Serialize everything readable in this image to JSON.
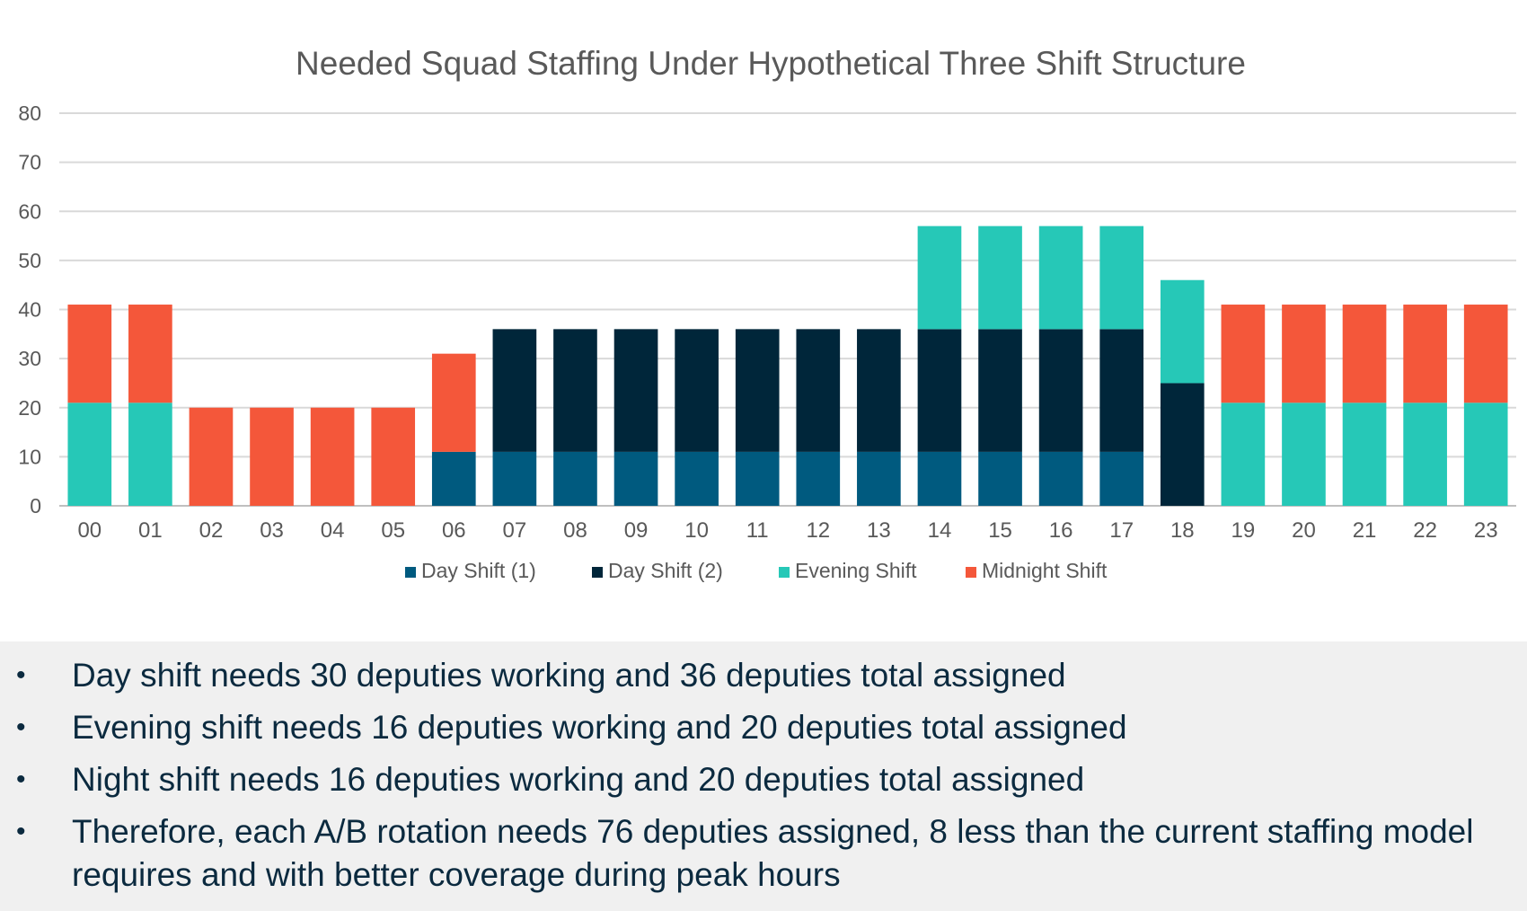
{
  "chart_data": {
    "type": "bar",
    "stacked": true,
    "title": "Needed Squad Staffing Under Hypothetical Three Shift Structure",
    "xlabel": "",
    "ylabel": "",
    "ylim": [
      0,
      80
    ],
    "yticks": [
      0,
      10,
      20,
      30,
      40,
      50,
      60,
      70,
      80
    ],
    "grid": true,
    "legend_position": "bottom",
    "categories": [
      "00",
      "01",
      "02",
      "03",
      "04",
      "05",
      "06",
      "07",
      "08",
      "09",
      "10",
      "11",
      "12",
      "13",
      "14",
      "15",
      "16",
      "17",
      "18",
      "19",
      "20",
      "21",
      "22",
      "23"
    ],
    "series": [
      {
        "name": "Day Shift (1)",
        "color": "#005a7f",
        "values": [
          0,
          0,
          0,
          0,
          0,
          0,
          11,
          11,
          11,
          11,
          11,
          11,
          11,
          11,
          11,
          11,
          11,
          11,
          0,
          0,
          0,
          0,
          0,
          0
        ]
      },
      {
        "name": "Day Shift (2)",
        "color": "#00263a",
        "values": [
          0,
          0,
          0,
          0,
          0,
          0,
          0,
          25,
          25,
          25,
          25,
          25,
          25,
          25,
          25,
          25,
          25,
          25,
          25,
          0,
          0,
          0,
          0,
          0
        ]
      },
      {
        "name": "Evening Shift",
        "color": "#26c8b7",
        "values": [
          21,
          21,
          0,
          0,
          0,
          0,
          0,
          0,
          0,
          0,
          0,
          0,
          0,
          0,
          21,
          21,
          21,
          21,
          21,
          21,
          21,
          21,
          21,
          21
        ]
      },
      {
        "name": "Midnight Shift",
        "color": "#f4573a",
        "values": [
          20,
          20,
          20,
          20,
          20,
          20,
          20,
          0,
          0,
          0,
          0,
          0,
          0,
          0,
          0,
          0,
          0,
          0,
          0,
          20,
          20,
          20,
          20,
          20
        ]
      }
    ]
  },
  "bullets": [
    {
      "text": "Day shift needs 30 deputies working and 36 deputies total assigned"
    },
    {
      "text": "Evening shift needs 16 deputies working and 20 deputies total assigned"
    },
    {
      "text": "Night shift needs 16 deputies working and 20 deputies total assigned"
    },
    {
      "text": "Therefore, each A/B rotation needs 76 deputies assigned, 8 less than the current staffing model requires and with better coverage during peak hours"
    }
  ],
  "bullet_glyph": "•"
}
